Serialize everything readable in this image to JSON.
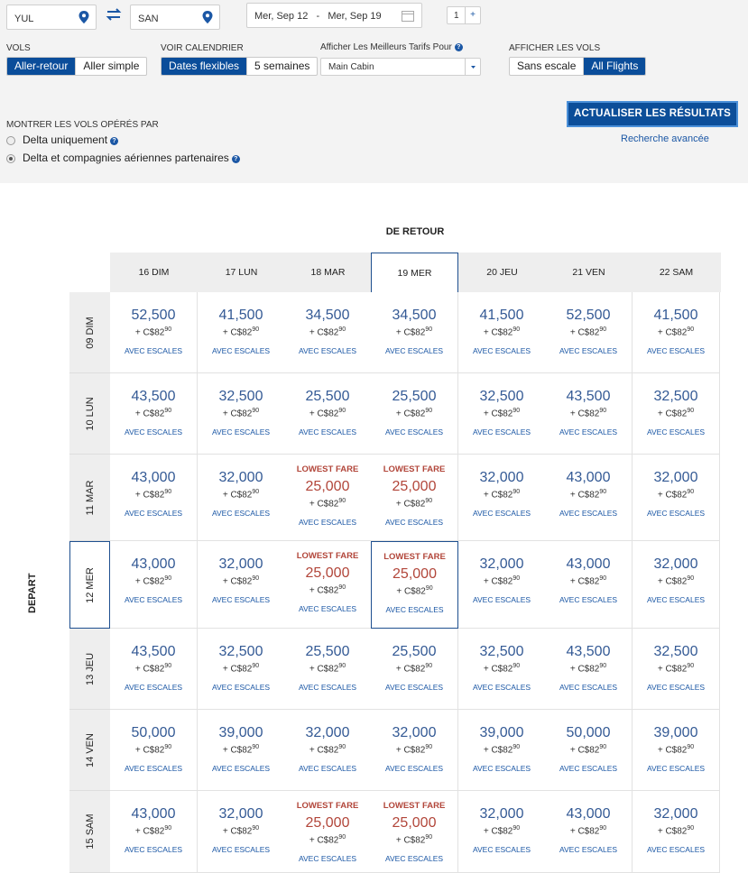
{
  "search": {
    "origin": "YUL",
    "destination": "SAN",
    "dates": "Mer, Sep 12   -   Mer, Sep 19",
    "passengers": "1",
    "stepper_plus": "+"
  },
  "options": {
    "trip_label": "VOLS",
    "trip_options": [
      "Aller-retour",
      "Aller simple"
    ],
    "trip_selected": "Aller-retour",
    "calendar_label": "VOIR CALENDRIER",
    "calendar_options": [
      "Dates flexibles",
      "5 semaines"
    ],
    "cabin_label": "Afficher Les Meilleurs Tarifs Pour",
    "cabin_value": "Main Cabin",
    "flights_label": "AFFICHER LES VOLS",
    "flights_options": [
      "Sans escale",
      "All Flights"
    ],
    "operated_label": "MONTRER LES VOLS OPÉRÉS PAR",
    "operated_options": [
      "Delta uniquement",
      "Delta et compagnies aériennes partenaires"
    ],
    "update_button": "ACTUALISER LES RÉSULTATS",
    "advanced_link": "Recherche avancée"
  },
  "grid": {
    "return_title": "DE RETOUR",
    "depart_title": "DEPART",
    "return_dates": [
      "16 DIM",
      "17 LUN",
      "18 MAR",
      "19 MER",
      "20 JEU",
      "21 VEN",
      "22 SAM"
    ],
    "depart_dates": [
      "09 DIM",
      "10 LUN",
      "11 MAR",
      "12 MER",
      "13 JEU",
      "14 VEN",
      "15 SAM"
    ],
    "selected_return": 3,
    "selected_depart": 3,
    "lowest_label": "LOWEST FARE",
    "tax_prefix": "+ C$82",
    "tax_cents": "90",
    "stops_label": "AVEC ESCALES",
    "miles": [
      [
        "52,500",
        "41,500",
        "34,500",
        "34,500",
        "41,500",
        "52,500",
        "41,500"
      ],
      [
        "43,500",
        "32,500",
        "25,500",
        "25,500",
        "32,500",
        "43,500",
        "32,500"
      ],
      [
        "43,000",
        "32,000",
        "25,000",
        "25,000",
        "32,000",
        "43,000",
        "32,000"
      ],
      [
        "43,000",
        "32,000",
        "25,000",
        "25,000",
        "32,000",
        "43,000",
        "32,000"
      ],
      [
        "43,500",
        "32,500",
        "25,500",
        "25,500",
        "32,500",
        "43,500",
        "32,500"
      ],
      [
        "50,000",
        "39,000",
        "32,000",
        "32,000",
        "39,000",
        "50,000",
        "39,000"
      ],
      [
        "43,000",
        "32,000",
        "25,000",
        "25,000",
        "32,000",
        "43,000",
        "32,000"
      ]
    ],
    "lowest": [
      [
        false,
        false,
        false,
        false,
        false,
        false,
        false
      ],
      [
        false,
        false,
        false,
        false,
        false,
        false,
        false
      ],
      [
        false,
        false,
        true,
        true,
        false,
        false,
        false
      ],
      [
        false,
        false,
        true,
        true,
        false,
        false,
        false
      ],
      [
        false,
        false,
        false,
        false,
        false,
        false,
        false
      ],
      [
        false,
        false,
        false,
        false,
        false,
        false,
        false
      ],
      [
        false,
        false,
        true,
        true,
        false,
        false,
        false
      ]
    ]
  }
}
